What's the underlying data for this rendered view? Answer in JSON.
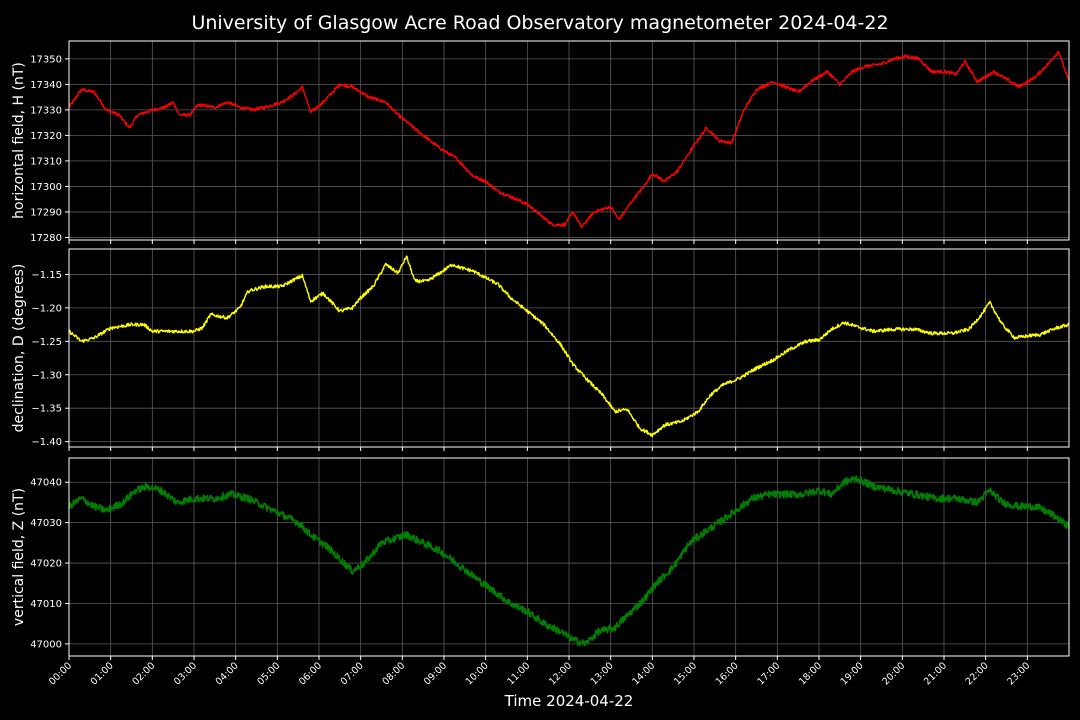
{
  "chart_data": {
    "title": "University of Glasgow Acre Road Observatory magnetometer 2024-04-22",
    "xlabel": "Time 2024-04-22",
    "x_ticks": [
      "00:00",
      "01:00",
      "02:00",
      "03:00",
      "04:00",
      "05:00",
      "06:00",
      "07:00",
      "08:00",
      "09:00",
      "10:00",
      "11:00",
      "12:00",
      "13:00",
      "14:00",
      "15:00",
      "16:00",
      "17:00",
      "18:00",
      "19:00",
      "20:00",
      "21:00",
      "22:00",
      "23:00"
    ],
    "xlim": [
      0,
      24
    ],
    "grid": true,
    "panels": [
      {
        "type": "line",
        "name": "horizontal field, H (nT)",
        "ylabel": "horizontal field, H (nT)",
        "color": "#ff0000",
        "ylim": [
          17279,
          17357
        ],
        "y_ticks": [
          "17280",
          "17290",
          "17300",
          "17310",
          "17320",
          "17330",
          "17340",
          "17350"
        ],
        "y_tick_values": [
          17280,
          17290,
          17300,
          17310,
          17320,
          17330,
          17340,
          17350
        ],
        "noise": 0.6,
        "points": [
          [
            0,
            17331
          ],
          [
            0.3,
            17338
          ],
          [
            0.6,
            17337
          ],
          [
            0.9,
            17330
          ],
          [
            1.2,
            17328
          ],
          [
            1.45,
            17323
          ],
          [
            1.65,
            17328
          ],
          [
            2.0,
            17330
          ],
          [
            2.3,
            17331
          ],
          [
            2.5,
            17333
          ],
          [
            2.65,
            17328
          ],
          [
            2.9,
            17328
          ],
          [
            3.1,
            17332
          ],
          [
            3.5,
            17331
          ],
          [
            3.8,
            17333
          ],
          [
            4.1,
            17331
          ],
          [
            4.4,
            17330
          ],
          [
            4.7,
            17331
          ],
          [
            5.1,
            17333
          ],
          [
            5.4,
            17336
          ],
          [
            5.6,
            17339
          ],
          [
            5.8,
            17329
          ],
          [
            6.1,
            17333
          ],
          [
            6.5,
            17340
          ],
          [
            6.8,
            17339
          ],
          [
            7.2,
            17335
          ],
          [
            7.6,
            17333
          ],
          [
            7.9,
            17328
          ],
          [
            8.2,
            17324
          ],
          [
            8.5,
            17320
          ],
          [
            8.9,
            17315
          ],
          [
            9.3,
            17311
          ],
          [
            9.7,
            17304
          ],
          [
            10.0,
            17302
          ],
          [
            10.3,
            17298
          ],
          [
            10.6,
            17296
          ],
          [
            11.0,
            17293
          ],
          [
            11.3,
            17289
          ],
          [
            11.6,
            17285
          ],
          [
            11.9,
            17285
          ],
          [
            12.1,
            17290
          ],
          [
            12.3,
            17284
          ],
          [
            12.6,
            17290
          ],
          [
            13.0,
            17292
          ],
          [
            13.2,
            17287
          ],
          [
            13.5,
            17294
          ],
          [
            13.8,
            17300
          ],
          [
            14.0,
            17305
          ],
          [
            14.3,
            17302
          ],
          [
            14.6,
            17306
          ],
          [
            15.0,
            17316
          ],
          [
            15.3,
            17323
          ],
          [
            15.6,
            17318
          ],
          [
            15.9,
            17317
          ],
          [
            16.2,
            17330
          ],
          [
            16.5,
            17338
          ],
          [
            16.9,
            17341
          ],
          [
            17.2,
            17339
          ],
          [
            17.5,
            17337
          ],
          [
            17.8,
            17341
          ],
          [
            18.2,
            17345
          ],
          [
            18.5,
            17340
          ],
          [
            18.8,
            17345
          ],
          [
            19.1,
            17347
          ],
          [
            19.5,
            17348
          ],
          [
            19.8,
            17350
          ],
          [
            20.1,
            17351
          ],
          [
            20.4,
            17350
          ],
          [
            20.7,
            17345
          ],
          [
            21.0,
            17345
          ],
          [
            21.3,
            17344
          ],
          [
            21.5,
            17349
          ],
          [
            21.8,
            17341
          ],
          [
            22.2,
            17345
          ],
          [
            22.5,
            17342
          ],
          [
            22.8,
            17339
          ],
          [
            23.2,
            17343
          ],
          [
            23.5,
            17348
          ],
          [
            23.75,
            17353
          ],
          [
            24.0,
            17341
          ]
        ]
      },
      {
        "type": "line",
        "name": "declination, D (degrees)",
        "ylabel": "declination, D (degrees)",
        "color": "#ffff00",
        "ylim": [
          -1.408,
          -1.112
        ],
        "y_ticks": [
          "−1.15",
          "−1.20",
          "−1.25",
          "−1.30",
          "−1.35",
          "−1.40"
        ],
        "y_tick_values": [
          -1.15,
          -1.2,
          -1.25,
          -1.3,
          -1.35,
          -1.4
        ],
        "noise": 0.0025,
        "points": [
          [
            0,
            -1.235
          ],
          [
            0.3,
            -1.25
          ],
          [
            0.6,
            -1.245
          ],
          [
            1.0,
            -1.23
          ],
          [
            1.5,
            -1.225
          ],
          [
            1.8,
            -1.225
          ],
          [
            2.0,
            -1.235
          ],
          [
            2.5,
            -1.235
          ],
          [
            3.0,
            -1.235
          ],
          [
            3.2,
            -1.23
          ],
          [
            3.4,
            -1.21
          ],
          [
            3.8,
            -1.215
          ],
          [
            4.1,
            -1.2
          ],
          [
            4.3,
            -1.175
          ],
          [
            4.7,
            -1.168
          ],
          [
            5.1,
            -1.168
          ],
          [
            5.4,
            -1.158
          ],
          [
            5.6,
            -1.152
          ],
          [
            5.8,
            -1.19
          ],
          [
            6.1,
            -1.178
          ],
          [
            6.5,
            -1.205
          ],
          [
            6.8,
            -1.2
          ],
          [
            7.0,
            -1.185
          ],
          [
            7.3,
            -1.168
          ],
          [
            7.6,
            -1.135
          ],
          [
            7.9,
            -1.148
          ],
          [
            8.1,
            -1.123
          ],
          [
            8.3,
            -1.16
          ],
          [
            8.6,
            -1.16
          ],
          [
            8.9,
            -1.148
          ],
          [
            9.2,
            -1.135
          ],
          [
            9.4,
            -1.14
          ],
          [
            9.7,
            -1.145
          ],
          [
            10.0,
            -1.155
          ],
          [
            10.3,
            -1.165
          ],
          [
            10.6,
            -1.185
          ],
          [
            11.0,
            -1.205
          ],
          [
            11.4,
            -1.225
          ],
          [
            11.8,
            -1.255
          ],
          [
            12.1,
            -1.285
          ],
          [
            12.4,
            -1.305
          ],
          [
            12.8,
            -1.33
          ],
          [
            13.1,
            -1.355
          ],
          [
            13.4,
            -1.352
          ],
          [
            13.7,
            -1.38
          ],
          [
            14.0,
            -1.39
          ],
          [
            14.3,
            -1.375
          ],
          [
            14.7,
            -1.37
          ],
          [
            15.1,
            -1.355
          ],
          [
            15.4,
            -1.33
          ],
          [
            15.7,
            -1.315
          ],
          [
            16.1,
            -1.305
          ],
          [
            16.5,
            -1.29
          ],
          [
            16.9,
            -1.278
          ],
          [
            17.3,
            -1.262
          ],
          [
            17.7,
            -1.25
          ],
          [
            18.0,
            -1.248
          ],
          [
            18.3,
            -1.232
          ],
          [
            18.6,
            -1.222
          ],
          [
            18.9,
            -1.228
          ],
          [
            19.3,
            -1.235
          ],
          [
            19.8,
            -1.232
          ],
          [
            20.3,
            -1.232
          ],
          [
            20.7,
            -1.238
          ],
          [
            21.2,
            -1.238
          ],
          [
            21.6,
            -1.232
          ],
          [
            21.9,
            -1.21
          ],
          [
            22.1,
            -1.192
          ],
          [
            22.4,
            -1.225
          ],
          [
            22.7,
            -1.245
          ],
          [
            23.0,
            -1.242
          ],
          [
            23.3,
            -1.24
          ],
          [
            23.7,
            -1.23
          ],
          [
            24.0,
            -1.225
          ]
        ]
      },
      {
        "type": "line",
        "name": "vertical field, Z (nT)",
        "ylabel": "vertical field, Z (nT)",
        "color": "#008000",
        "ylim": [
          46997,
          47046
        ],
        "y_ticks": [
          "47000",
          "47010",
          "47020",
          "47030",
          "47040"
        ],
        "y_tick_values": [
          47000,
          47010,
          47020,
          47030,
          47040
        ],
        "noise": 0.9,
        "points": [
          [
            0,
            47034
          ],
          [
            0.3,
            47036
          ],
          [
            0.6,
            47034
          ],
          [
            0.9,
            47033
          ],
          [
            1.3,
            47035
          ],
          [
            1.6,
            47038
          ],
          [
            1.9,
            47039
          ],
          [
            2.2,
            47038
          ],
          [
            2.6,
            47035
          ],
          [
            3.0,
            47036
          ],
          [
            3.5,
            47036
          ],
          [
            3.9,
            47037
          ],
          [
            4.3,
            47036
          ],
          [
            4.7,
            47034
          ],
          [
            5.1,
            47032
          ],
          [
            5.5,
            47030
          ],
          [
            5.8,
            47027
          ],
          [
            6.2,
            47024
          ],
          [
            6.5,
            47021
          ],
          [
            6.8,
            47018
          ],
          [
            7.1,
            47020
          ],
          [
            7.5,
            47025
          ],
          [
            7.8,
            47026
          ],
          [
            8.1,
            47027
          ],
          [
            8.5,
            47025
          ],
          [
            8.9,
            47023
          ],
          [
            9.3,
            47020
          ],
          [
            9.8,
            47016
          ],
          [
            10.2,
            47013
          ],
          [
            10.6,
            47010
          ],
          [
            11.0,
            47008
          ],
          [
            11.4,
            47005
          ],
          [
            11.8,
            47003
          ],
          [
            12.1,
            47001
          ],
          [
            12.4,
            47000
          ],
          [
            12.7,
            47003
          ],
          [
            13.1,
            47004
          ],
          [
            13.4,
            47007
          ],
          [
            13.8,
            47011
          ],
          [
            14.1,
            47015
          ],
          [
            14.5,
            47019
          ],
          [
            14.9,
            47025
          ],
          [
            15.3,
            47028
          ],
          [
            15.6,
            47030
          ],
          [
            16.0,
            47033
          ],
          [
            16.4,
            47036
          ],
          [
            16.8,
            47037
          ],
          [
            17.2,
            47037
          ],
          [
            17.6,
            47037
          ],
          [
            18.0,
            47038
          ],
          [
            18.3,
            47037
          ],
          [
            18.6,
            47040
          ],
          [
            18.9,
            47041
          ],
          [
            19.3,
            47039
          ],
          [
            19.8,
            47038
          ],
          [
            20.3,
            47037
          ],
          [
            20.8,
            47036
          ],
          [
            21.3,
            47036
          ],
          [
            21.8,
            47035
          ],
          [
            22.1,
            47038
          ],
          [
            22.4,
            47035
          ],
          [
            22.8,
            47034
          ],
          [
            23.2,
            47034
          ],
          [
            23.6,
            47032
          ],
          [
            24.0,
            47029
          ]
        ]
      }
    ]
  }
}
